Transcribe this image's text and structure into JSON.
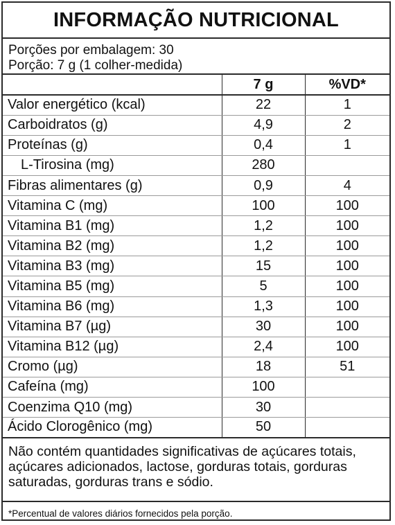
{
  "title": "INFORMAÇÃO NUTRICIONAL",
  "servings_per_package": "Porções por embalagem: 30",
  "serving_size": "Porção: 7 g (1 colher-medida)",
  "columns": {
    "name": "",
    "amount": "7 g",
    "vd": "%VD*"
  },
  "rows": [
    {
      "name": "Valor energético (kcal)",
      "amount": "22",
      "vd": "1"
    },
    {
      "name": "Carboidratos (g)",
      "amount": "4,9",
      "vd": "2"
    },
    {
      "name": "Proteínas (g)",
      "amount": "0,4",
      "vd": "1"
    },
    {
      "name": "L-Tirosina (mg)",
      "amount": "280",
      "vd": ""
    },
    {
      "name": "Fibras alimentares (g)",
      "amount": "0,9",
      "vd": "4"
    },
    {
      "name": "Vitamina C (mg)",
      "amount": "100",
      "vd": "100"
    },
    {
      "name": "Vitamina B1 (mg)",
      "amount": "1,2",
      "vd": "100"
    },
    {
      "name": "Vitamina B2 (mg)",
      "amount": "1,2",
      "vd": "100"
    },
    {
      "name": "Vitamina B3 (mg)",
      "amount": "15",
      "vd": "100"
    },
    {
      "name": "Vitamina B5 (mg)",
      "amount": "5",
      "vd": "100"
    },
    {
      "name": "Vitamina B6 (mg)",
      "amount": "1,3",
      "vd": "100"
    },
    {
      "name": "Vitamina B7 (µg)",
      "amount": "30",
      "vd": "100"
    },
    {
      "name": "Vitamina B12 (µg)",
      "amount": "2,4",
      "vd": "100"
    },
    {
      "name": "Cromo (µg)",
      "amount": "18",
      "vd": "51"
    },
    {
      "name": "Cafeína (mg)",
      "amount": "100",
      "vd": ""
    },
    {
      "name": "Coenzima Q10 (mg)",
      "amount": "30",
      "vd": ""
    },
    {
      "name": "Ácido Clorogênico (mg)",
      "amount": "50",
      "vd": ""
    }
  ],
  "note": "Não contém quantidades significativas de açúcares totais, açúcares adicionados, lactose, gorduras totais, gorduras saturadas, gorduras trans e sódio.",
  "footnote": "*Percentual de valores diários fornecidos pela porção."
}
